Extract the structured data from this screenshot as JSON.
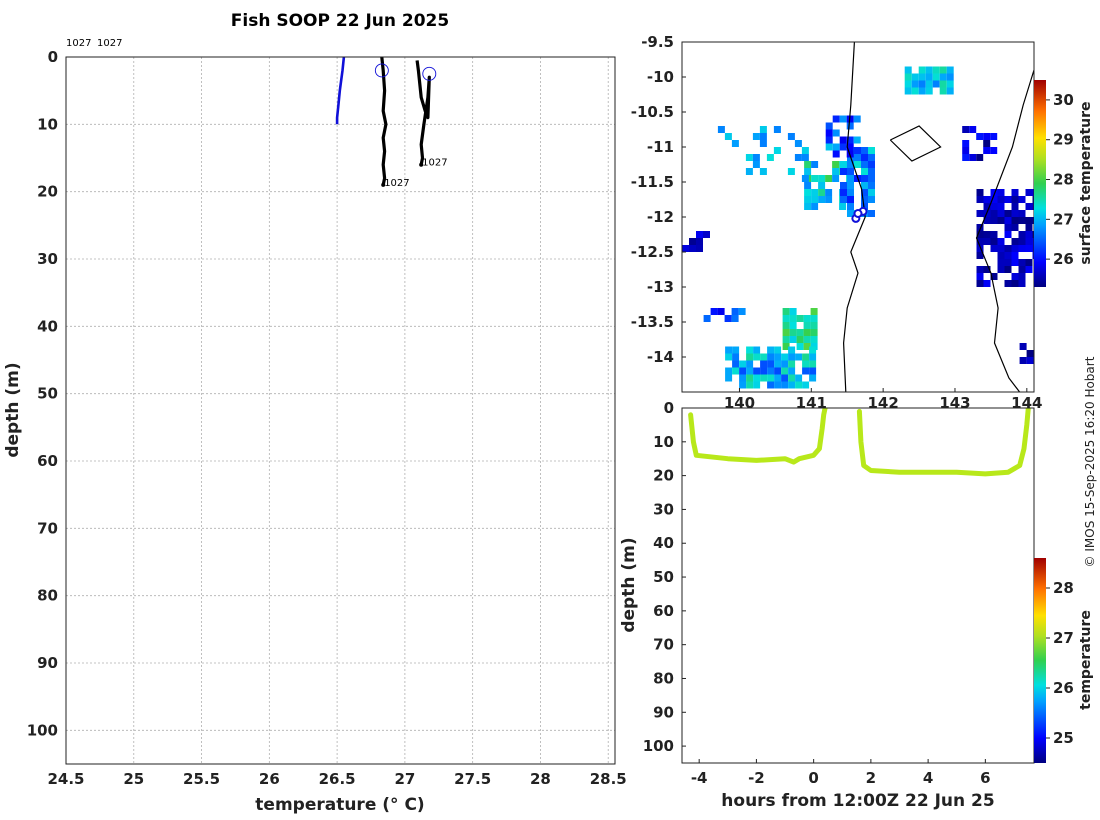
{
  "colors": {
    "cast_blue": "#1010d8",
    "cast_black": "#000000",
    "depth_series": "#b8e81a",
    "grid": "#b0b0b0"
  },
  "credit": "© IMOS 15-Sep-2025 16:20 Hobart",
  "chart_data": [
    {
      "type": "line",
      "title": "Fish SOOP 22 Jun 2025",
      "xlabel": "temperature (° C)",
      "ylabel": "depth (m)",
      "xlim": [
        24.5,
        28.55
      ],
      "ylim": [
        105,
        0
      ],
      "xticks": [
        24.5,
        25,
        25.5,
        26,
        26.5,
        27,
        27.5,
        28,
        28.5
      ],
      "yticks": [
        0,
        10,
        20,
        30,
        40,
        50,
        60,
        70,
        80,
        90,
        100
      ],
      "grid": true,
      "header_labels": [
        "1027",
        "1027"
      ],
      "series": [
        {
          "name": "profile-blue",
          "color": "#1010d8",
          "temperature": [
            26.55,
            26.54,
            26.52,
            26.51,
            26.5,
            26.5
          ],
          "depth": [
            0,
            2,
            5,
            7,
            9,
            10
          ]
        },
        {
          "name": "profile-1027-a",
          "color": "#000000",
          "label": "1027",
          "marker": {
            "temperature": 26.83,
            "depth": 2
          },
          "temperature": [
            26.83,
            26.84,
            26.85,
            26.84,
            26.86,
            26.84,
            26.85,
            26.84,
            26.85,
            26.84
          ],
          "depth": [
            0,
            2,
            5,
            8,
            10,
            12,
            14,
            16,
            18,
            19
          ]
        },
        {
          "name": "profile-1027-b",
          "color": "#000000",
          "label": "1027",
          "marker": {
            "temperature": 27.18,
            "depth": 2.5
          },
          "temperature": [
            27.09,
            27.1,
            27.11,
            27.12,
            27.15,
            27.17,
            27.18,
            27.17,
            27.14,
            27.12,
            27.13,
            27.12
          ],
          "depth": [
            0.5,
            2,
            4,
            6,
            8,
            9,
            3,
            6,
            10,
            13,
            15,
            16
          ]
        }
      ]
    },
    {
      "type": "heatmap",
      "title": "",
      "xlabel": "",
      "ylabel": "",
      "xlim": [
        139.2,
        144.1
      ],
      "ylim": [
        -14.5,
        -9.5
      ],
      "xticks": [
        140,
        141,
        142,
        143,
        144
      ],
      "yticks": [
        -9.5,
        -10,
        -10.5,
        -11,
        -11.5,
        -12,
        -12.5,
        -13,
        -13.5,
        -14
      ],
      "colorbar": {
        "label": "surface temperature",
        "min": 25.3,
        "max": 30.5,
        "ticks": [
          26,
          27,
          28,
          29,
          30
        ]
      },
      "track_points": [
        {
          "lon": 141.62,
          "lat": -12.02
        },
        {
          "lon": 141.72,
          "lat": -11.92
        },
        {
          "lon": 141.65,
          "lat": -11.95
        }
      ]
    },
    {
      "type": "scatter",
      "title": "",
      "xlabel": "hours from 12:00Z 22 Jun 25",
      "ylabel": "depth (m)",
      "xlim": [
        -4.6,
        7.7
      ],
      "ylim": [
        105,
        0
      ],
      "xticks": [
        -4,
        -2,
        0,
        2,
        4,
        6
      ],
      "yticks": [
        0,
        10,
        20,
        30,
        40,
        50,
        60,
        70,
        80,
        90,
        100
      ],
      "colorbar": {
        "label": "temperature",
        "min": 24.5,
        "max": 28.6,
        "ticks": [
          25,
          26,
          27,
          28
        ]
      },
      "series": [
        {
          "name": "cast-1",
          "temperature": 27.1,
          "hours": [
            -4.3,
            -4.2,
            -4.1,
            -3,
            -2,
            -1,
            -0.7,
            -0.5,
            0,
            0.2,
            0.3,
            0.35,
            0.4
          ],
          "depth": [
            2,
            10,
            14,
            15,
            15.5,
            15,
            16,
            15,
            14,
            12,
            6,
            2,
            0
          ]
        },
        {
          "name": "cast-2",
          "temperature": 27.2,
          "hours": [
            1.6,
            1.65,
            1.75,
            2,
            3,
            4,
            5,
            6,
            6.8,
            7.2,
            7.35,
            7.45,
            7.5
          ],
          "depth": [
            1,
            10,
            17,
            18.5,
            19,
            19,
            19,
            19.5,
            19,
            17,
            12,
            5,
            0
          ]
        }
      ]
    }
  ]
}
